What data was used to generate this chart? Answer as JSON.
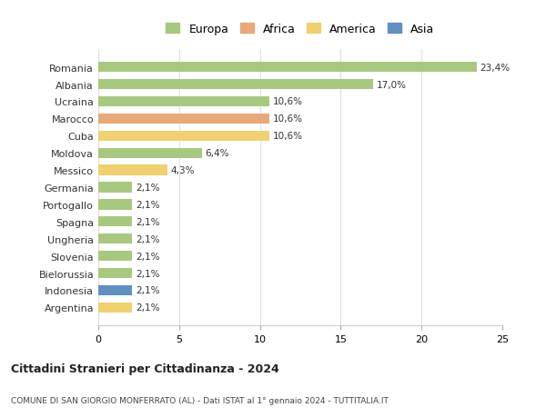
{
  "countries": [
    "Romania",
    "Albania",
    "Ucraina",
    "Marocco",
    "Cuba",
    "Moldova",
    "Messico",
    "Germania",
    "Portogallo",
    "Spagna",
    "Ungheria",
    "Slovenia",
    "Bielorussia",
    "Indonesia",
    "Argentina"
  ],
  "values": [
    23.4,
    17.0,
    10.6,
    10.6,
    10.6,
    6.4,
    4.3,
    2.1,
    2.1,
    2.1,
    2.1,
    2.1,
    2.1,
    2.1,
    2.1
  ],
  "labels": [
    "23,4%",
    "17,0%",
    "10,6%",
    "10,6%",
    "10,6%",
    "6,4%",
    "4,3%",
    "2,1%",
    "2,1%",
    "2,1%",
    "2,1%",
    "2,1%",
    "2,1%",
    "2,1%",
    "2,1%"
  ],
  "continents": [
    "Europa",
    "Europa",
    "Europa",
    "Africa",
    "America",
    "Europa",
    "America",
    "Europa",
    "Europa",
    "Europa",
    "Europa",
    "Europa",
    "Europa",
    "Asia",
    "America"
  ],
  "colors": {
    "Europa": "#a8c880",
    "Africa": "#e8a878",
    "America": "#f0d070",
    "Asia": "#6090c0"
  },
  "legend_order": [
    "Europa",
    "Africa",
    "America",
    "Asia"
  ],
  "xlim": [
    0,
    25
  ],
  "xticks": [
    0,
    5,
    10,
    15,
    20,
    25
  ],
  "title": "Cittadini Stranieri per Cittadinanza - 2024",
  "subtitle": "COMUNE DI SAN GIORGIO MONFERRATO (AL) - Dati ISTAT al 1° gennaio 2024 - TUTTITALIA.IT",
  "background_color": "#ffffff",
  "grid_color": "#e0e0e0",
  "bar_height": 0.6
}
